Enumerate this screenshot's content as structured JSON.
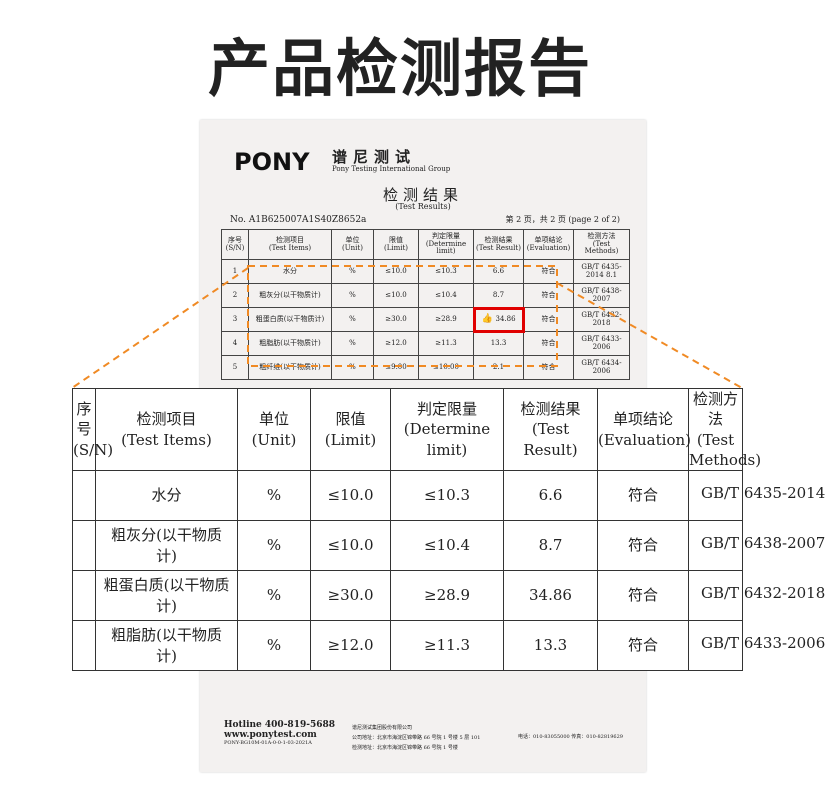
{
  "page_title": "产品检测报告",
  "report": {
    "logo_text": "PONY",
    "company_cn": "谱尼测试",
    "company_en": "Pony Testing International Group",
    "title": "检测结果",
    "subtitle": "(Test Results)",
    "report_no": "No. A1B625007A1S40Z8652a",
    "page_info": "第 2 页，共 2 页 (page 2 of 2)",
    "headers": [
      "序号\n(S/N)",
      "检测项目\n(Test Items)",
      "单位\n(Unit)",
      "限值\n(Limit)",
      "判定限量\n(Determine limit)",
      "检测结果\n(Test Result)",
      "单项结论\n(Evaluation)",
      "检测方法\n(Test Methods)"
    ],
    "rows": [
      [
        "1",
        "水分",
        "%",
        "≤10.0",
        "≤10.3",
        "6.6",
        "符合",
        "GB/T 6435-2014 8.1"
      ],
      [
        "2",
        "粗灰分(以干物质计)",
        "%",
        "≤10.0",
        "≤10.4",
        "8.7",
        "符合",
        "GB/T 6438-2007"
      ],
      [
        "3",
        "粗蛋白质(以干物质计)",
        "%",
        "≥30.0",
        "≥28.9",
        "34.86",
        "符合",
        "GB/T 6432-2018"
      ],
      [
        "4",
        "粗脂肪(以干物质计)",
        "%",
        "≥12.0",
        "≥11.3",
        "13.3",
        "符合",
        "GB/T 6433-2006"
      ],
      [
        "5",
        "粗纤维(以干物质计)",
        "%",
        "≤9.00",
        "≤10.00",
        "2.1",
        "符合",
        "GB/T 6434-2006"
      ]
    ],
    "highlight_value": "34.86",
    "footer": {
      "hotline": "Hotline 400-819-5688",
      "website": "www.ponytest.com",
      "code": "PONY-BG10M-01A-0-0-1-03-2021A",
      "company": "谱尼测试集团股份有限公司",
      "address": "公司地址：北京市海淀区锦带路 66 号院 1 号楼 5 层 101",
      "lab_address": "检测地址：北京市海淀区锦带路 66 号院 1 号楼",
      "phone": "电话：010-83055000  传真：010-82819629"
    }
  },
  "zoomed": {
    "headers": [
      "序号\n(S/N)",
      "检测项目\n(Test Items)",
      "单位\n(Unit)",
      "限值\n(Limit)",
      "判定限量\n(Determine limit)",
      "检测结果\n(Test Result)",
      "单项结论\n(Evaluation)",
      "检测方法\n(Test Methods)"
    ],
    "rows": [
      [
        "",
        "水分",
        "%",
        "≤10.0",
        "≤10.3",
        "6.6",
        "符合",
        "GB/T 6435-2014"
      ],
      [
        "",
        "粗灰分(以干物质\n计)",
        "%",
        "≤10.0",
        "≤10.4",
        "8.7",
        "符合",
        "GB/T 6438-2007"
      ],
      [
        "",
        "粗蛋白质(以干物质\n计)",
        "%",
        "≥30.0",
        "≥28.9",
        "34.86",
        "符合",
        "GB/T 6432-2018"
      ],
      [
        "",
        "粗脂肪(以干物质\n计)",
        "%",
        "≥12.0",
        "≥11.3",
        "13.3",
        "符合",
        "GB/T 6433-2006"
      ]
    ]
  },
  "colors": {
    "highlight_dash": "#f08a24",
    "highlight_box": "#e00000"
  }
}
